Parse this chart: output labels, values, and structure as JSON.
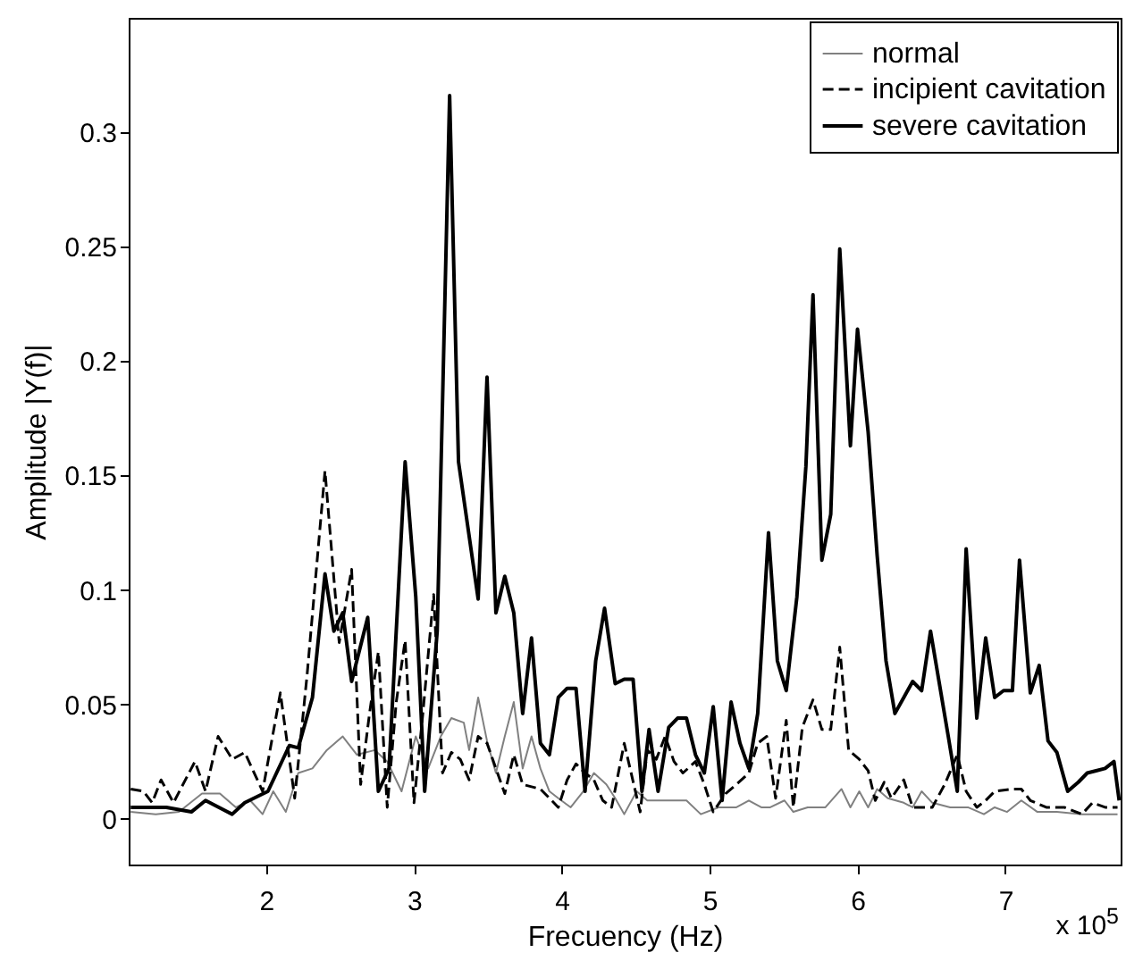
{
  "chart_data": {
    "type": "line",
    "xlabel": "Frecuency (Hz)",
    "ylabel": "Amplitude |Y(f)|",
    "annotations": [
      "x 10$^{5}$"
    ],
    "xlim": [
      1.07,
      7.78
    ],
    "xticks": [
      2,
      3,
      4,
      5,
      6,
      7
    ],
    "ylim": [
      -0.02,
      0.35
    ],
    "yticks": [
      0,
      0.05,
      0.1,
      0.15,
      0.2,
      0.25,
      0.3
    ],
    "grid": false,
    "legend": "top right",
    "marker": "none",
    "series": [
      {
        "name": "normal",
        "color": "#808080",
        "line_style": "solid",
        "x": [
          1.084,
          1.253,
          1.41,
          1.566,
          1.687,
          1.795,
          1.892,
          1.976,
          2.048,
          2.133,
          2.217,
          2.313,
          2.41,
          2.518,
          2.614,
          2.735,
          2.819,
          2.916,
          3.012,
          3.096,
          3.181,
          3.253,
          3.337,
          3.373,
          3.434,
          3.494,
          3.554,
          3.614,
          3.675,
          3.735,
          3.795,
          3.855,
          3.916,
          3.976,
          4.06,
          4.145,
          4.217,
          4.301,
          4.361,
          4.422,
          4.506,
          4.578,
          4.699,
          4.843,
          4.94,
          5.06,
          5.181,
          5.265,
          5.349,
          5.41,
          5.506,
          5.566,
          5.663,
          5.783,
          5.892,
          5.952,
          6.012,
          6.072,
          6.133,
          6.205,
          6.313,
          6.373,
          6.434,
          6.506,
          6.627,
          6.747,
          6.855,
          6.928,
          7.012,
          7.108,
          7.217,
          7.349,
          7.518,
          7.759
        ],
        "values": [
          0.003,
          0.002,
          0.003,
          0.011,
          0.011,
          0.005,
          0.008,
          0.002,
          0.012,
          0.003,
          0.02,
          0.022,
          0.03,
          0.036,
          0.028,
          0.03,
          0.025,
          0.012,
          0.036,
          0.022,
          0.036,
          0.044,
          0.042,
          0.03,
          0.053,
          0.034,
          0.02,
          0.036,
          0.051,
          0.022,
          0.036,
          0.022,
          0.012,
          0.009,
          0.005,
          0.012,
          0.02,
          0.015,
          0.009,
          0.002,
          0.012,
          0.008,
          0.008,
          0.008,
          0.002,
          0.005,
          0.005,
          0.008,
          0.005,
          0.005,
          0.008,
          0.003,
          0.005,
          0.005,
          0.013,
          0.005,
          0.012,
          0.005,
          0.013,
          0.009,
          0.007,
          0.005,
          0.012,
          0.007,
          0.005,
          0.005,
          0.002,
          0.005,
          0.003,
          0.008,
          0.003,
          0.003,
          0.002,
          0.002
        ]
      },
      {
        "name": "incipient cavitation",
        "color": "#000000",
        "line_style": "dashed",
        "x": [
          1.084,
          1.169,
          1.229,
          1.289,
          1.373,
          1.518,
          1.59,
          1.675,
          1.771,
          1.855,
          1.976,
          2.096,
          2.193,
          2.277,
          2.398,
          2.494,
          2.578,
          2.639,
          2.699,
          2.759,
          2.819,
          2.88,
          2.94,
          3.0,
          3.06,
          3.133,
          3.193,
          3.253,
          3.313,
          3.373,
          3.434,
          3.494,
          3.554,
          3.614,
          3.675,
          3.735,
          3.855,
          3.916,
          3.976,
          4.036,
          4.096,
          4.157,
          4.217,
          4.277,
          4.337,
          4.422,
          4.53,
          4.578,
          4.639,
          4.699,
          4.759,
          4.819,
          4.904,
          4.964,
          5.024,
          5.108,
          5.181,
          5.265,
          5.325,
          5.386,
          5.446,
          5.518,
          5.566,
          5.627,
          5.699,
          5.759,
          5.819,
          5.88,
          5.94,
          6.012,
          6.072,
          6.12,
          6.181,
          6.229,
          6.313,
          6.373,
          6.506,
          6.59,
          6.675,
          6.735,
          6.807,
          6.867,
          6.928,
          7.048,
          7.108,
          7.169,
          7.277,
          7.398,
          7.518,
          7.59,
          7.675,
          7.759
        ],
        "values": [
          0.013,
          0.012,
          0.007,
          0.017,
          0.007,
          0.025,
          0.012,
          0.036,
          0.026,
          0.029,
          0.012,
          0.055,
          0.009,
          0.063,
          0.152,
          0.077,
          0.109,
          0.015,
          0.046,
          0.073,
          0.005,
          0.051,
          0.078,
          0.007,
          0.046,
          0.098,
          0.02,
          0.029,
          0.026,
          0.017,
          0.036,
          0.033,
          0.022,
          0.011,
          0.028,
          0.015,
          0.013,
          0.009,
          0.005,
          0.017,
          0.024,
          0.02,
          0.017,
          0.008,
          0.005,
          0.033,
          0.003,
          0.03,
          0.026,
          0.036,
          0.025,
          0.02,
          0.025,
          0.015,
          0.003,
          0.011,
          0.015,
          0.02,
          0.033,
          0.036,
          0.009,
          0.043,
          0.005,
          0.04,
          0.052,
          0.039,
          0.039,
          0.075,
          0.03,
          0.026,
          0.021,
          0.008,
          0.016,
          0.009,
          0.017,
          0.005,
          0.005,
          0.015,
          0.028,
          0.012,
          0.005,
          0.008,
          0.012,
          0.013,
          0.013,
          0.008,
          0.005,
          0.005,
          0.002,
          0.007,
          0.005,
          0.005
        ]
      },
      {
        "name": "severe cavitation",
        "color": "#000000",
        "line_style": "solid",
        "x": [
          1.084,
          1.325,
          1.494,
          1.59,
          1.77,
          1.855,
          2.012,
          2.157,
          2.217,
          2.313,
          2.398,
          2.458,
          2.518,
          2.578,
          2.687,
          2.759,
          2.831,
          2.94,
          3.012,
          3.072,
          3.157,
          3.241,
          3.301,
          3.434,
          3.494,
          3.554,
          3.614,
          3.675,
          3.735,
          3.795,
          3.855,
          3.916,
          3.976,
          4.036,
          4.096,
          4.157,
          4.229,
          4.289,
          4.361,
          4.422,
          4.482,
          4.542,
          4.59,
          4.651,
          4.723,
          4.783,
          4.843,
          4.904,
          4.964,
          5.024,
          5.084,
          5.145,
          5.205,
          5.265,
          5.325,
          5.398,
          5.458,
          5.518,
          5.59,
          5.651,
          5.699,
          5.759,
          5.819,
          5.88,
          5.952,
          6.0,
          6.072,
          6.133,
          6.193,
          6.253,
          6.313,
          6.373,
          6.434,
          6.494,
          6.554,
          6.614,
          6.675,
          6.735,
          6.807,
          6.867,
          6.928,
          6.988,
          7.048,
          7.096,
          7.169,
          7.229,
          7.289,
          7.349,
          7.422,
          7.494,
          7.554,
          7.614,
          7.675,
          7.735,
          7.77
        ],
        "values": [
          0.005,
          0.005,
          0.003,
          0.008,
          0.002,
          0.007,
          0.012,
          0.032,
          0.031,
          0.053,
          0.107,
          0.082,
          0.09,
          0.06,
          0.088,
          0.012,
          0.022,
          0.156,
          0.097,
          0.012,
          0.082,
          0.316,
          0.156,
          0.096,
          0.193,
          0.09,
          0.106,
          0.09,
          0.046,
          0.079,
          0.033,
          0.028,
          0.053,
          0.057,
          0.057,
          0.012,
          0.069,
          0.092,
          0.059,
          0.061,
          0.061,
          0.012,
          0.039,
          0.012,
          0.04,
          0.044,
          0.044,
          0.028,
          0.02,
          0.049,
          0.008,
          0.051,
          0.033,
          0.022,
          0.046,
          0.125,
          0.069,
          0.056,
          0.097,
          0.154,
          0.229,
          0.113,
          0.133,
          0.249,
          0.163,
          0.214,
          0.169,
          0.115,
          0.069,
          0.046,
          0.053,
          0.06,
          0.056,
          0.082,
          0.059,
          0.036,
          0.012,
          0.118,
          0.044,
          0.079,
          0.053,
          0.056,
          0.056,
          0.113,
          0.055,
          0.067,
          0.034,
          0.029,
          0.012,
          0.016,
          0.02,
          0.021,
          0.022,
          0.025,
          0.008
        ]
      }
    ]
  }
}
